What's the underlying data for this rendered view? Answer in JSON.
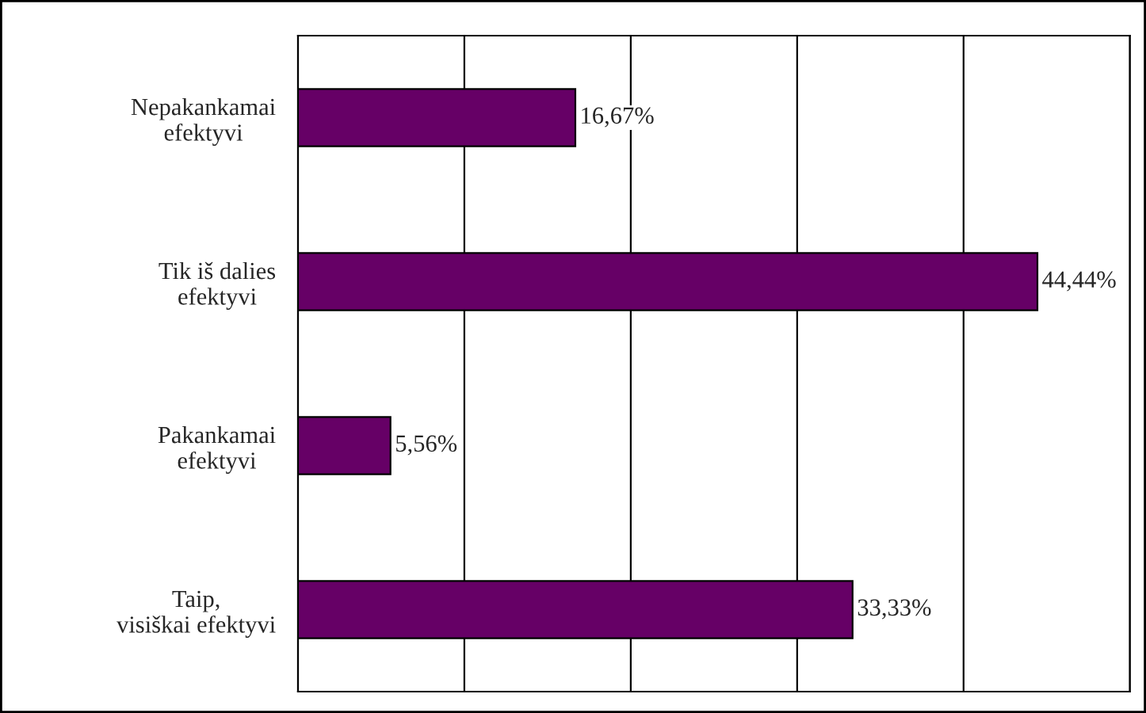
{
  "chart_data": {
    "type": "bar",
    "orientation": "horizontal",
    "categories": [
      "Nepakankamai\nefektyvi",
      "Tik iš dalies\nefektyvi",
      "Pakankamai\nefektyvi",
      "Taip,\nvisiškai efektyvi"
    ],
    "values": [
      16.67,
      44.44,
      5.56,
      33.33
    ],
    "value_labels": [
      "16,67%",
      "44,44%",
      "5,56%",
      "33,33%"
    ],
    "color": "#660066",
    "xlim": [
      0,
      50
    ],
    "xticks": [
      {
        "value": 0,
        "label": null
      },
      {
        "value": 10,
        "label": null
      },
      {
        "value": 20,
        "label": null
      },
      {
        "value": 30,
        "label": null
      },
      {
        "value": 40,
        "label": null
      },
      {
        "value": 50,
        "label": null
      }
    ],
    "grid": "x"
  }
}
